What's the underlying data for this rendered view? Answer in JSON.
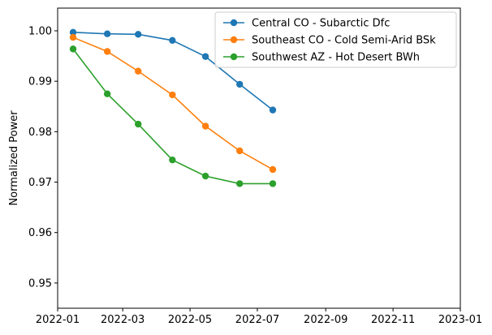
{
  "chart_data": {
    "type": "line",
    "title": "",
    "xlabel": "",
    "ylabel": "Normalized Power",
    "x_ticks": [
      "2022-01",
      "2022-03",
      "2022-05",
      "2022-07",
      "2022-09",
      "2022-11",
      "2023-01"
    ],
    "y_ticks": [
      "0.95",
      "0.96",
      "0.97",
      "0.98",
      "0.99",
      "1.00"
    ],
    "xlim": [
      "2022-01-01",
      "2023-01-01"
    ],
    "ylim": [
      0.945,
      1.0045
    ],
    "legend_position": "top-right",
    "x": [
      "2022-01-15",
      "2022-02-15",
      "2022-03-15",
      "2022-04-15",
      "2022-05-15",
      "2022-06-15",
      "2022-07-15"
    ],
    "series": [
      {
        "name": "Central CO - Subarctic Dfc",
        "color": "#1f77b4",
        "values": [
          0.9997,
          0.9994,
          0.9993,
          0.9981,
          0.9949,
          0.9894,
          0.9843
        ]
      },
      {
        "name": "Southeast CO - Cold Semi-Arid BSk",
        "color": "#ff7f0e",
        "values": [
          0.9987,
          0.9959,
          0.992,
          0.9873,
          0.9811,
          0.9762,
          0.9725
        ]
      },
      {
        "name": "Southwest AZ - Hot Desert BWh",
        "color": "#2ca02c",
        "values": [
          0.9964,
          0.9875,
          0.9815,
          0.9744,
          0.9712,
          0.9697,
          0.9697
        ]
      }
    ]
  }
}
